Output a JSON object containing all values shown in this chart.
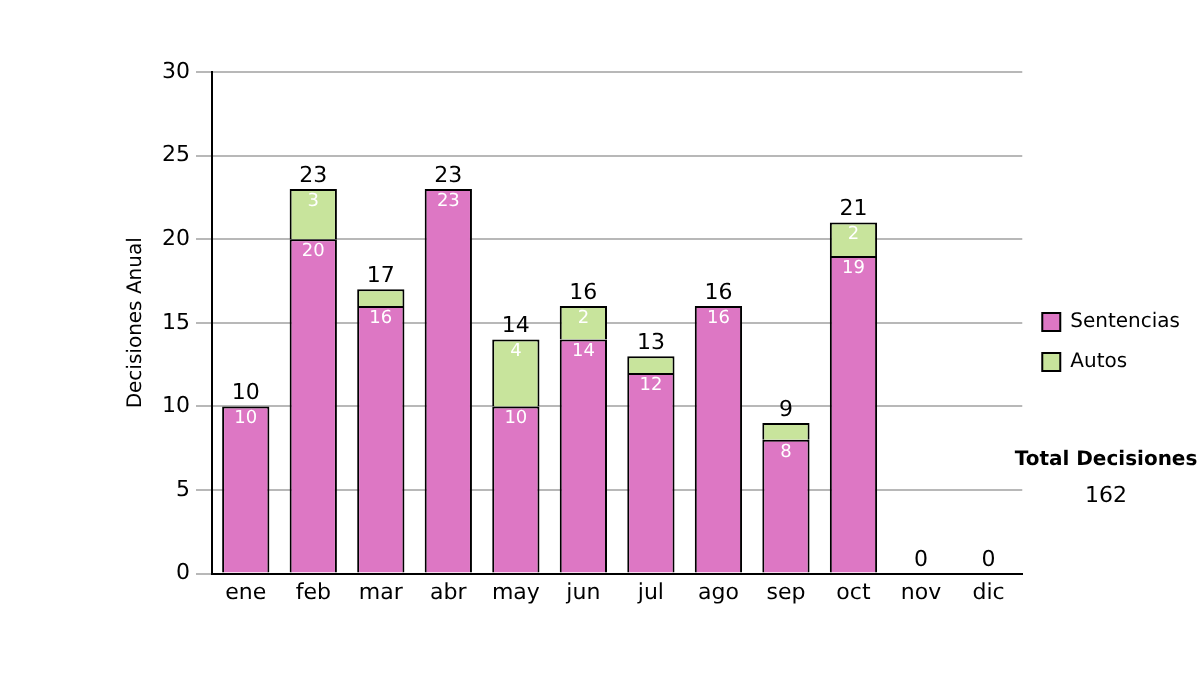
{
  "chart_data": {
    "type": "bar",
    "stacked": true,
    "ylabel": "Decisiones Anual",
    "categories": [
      "ene",
      "feb",
      "mar",
      "abr",
      "may",
      "jun",
      "jul",
      "ago",
      "sep",
      "oct",
      "nov",
      "dic"
    ],
    "series": [
      {
        "name": "Sentencias",
        "color": "#dd77c4",
        "values": [
          10,
          20,
          16,
          23,
          10,
          14,
          12,
          16,
          8,
          19,
          0,
          0
        ],
        "value_labels": [
          "10",
          "20",
          "16",
          "23",
          "10",
          "14",
          "12",
          "16",
          "8",
          "19",
          null,
          null
        ]
      },
      {
        "name": "Autos",
        "color": "#c8e49c",
        "values": [
          0,
          3,
          1,
          0,
          4,
          2,
          1,
          0,
          1,
          2,
          0,
          0
        ],
        "value_labels": [
          null,
          "3",
          null,
          null,
          "4",
          "2",
          null,
          null,
          null,
          "2",
          null,
          null
        ]
      }
    ],
    "totals": [
      "10",
      "23",
      "17",
      "23",
      "14",
      "16",
      "13",
      "16",
      "9",
      "21",
      "0",
      "0"
    ],
    "ylim": [
      0,
      30
    ],
    "yticks": [
      0,
      5,
      10,
      15,
      20,
      25,
      30
    ],
    "grid": "y",
    "legend": "right",
    "annotations": [
      "Total Decisiones",
      "162"
    ]
  }
}
